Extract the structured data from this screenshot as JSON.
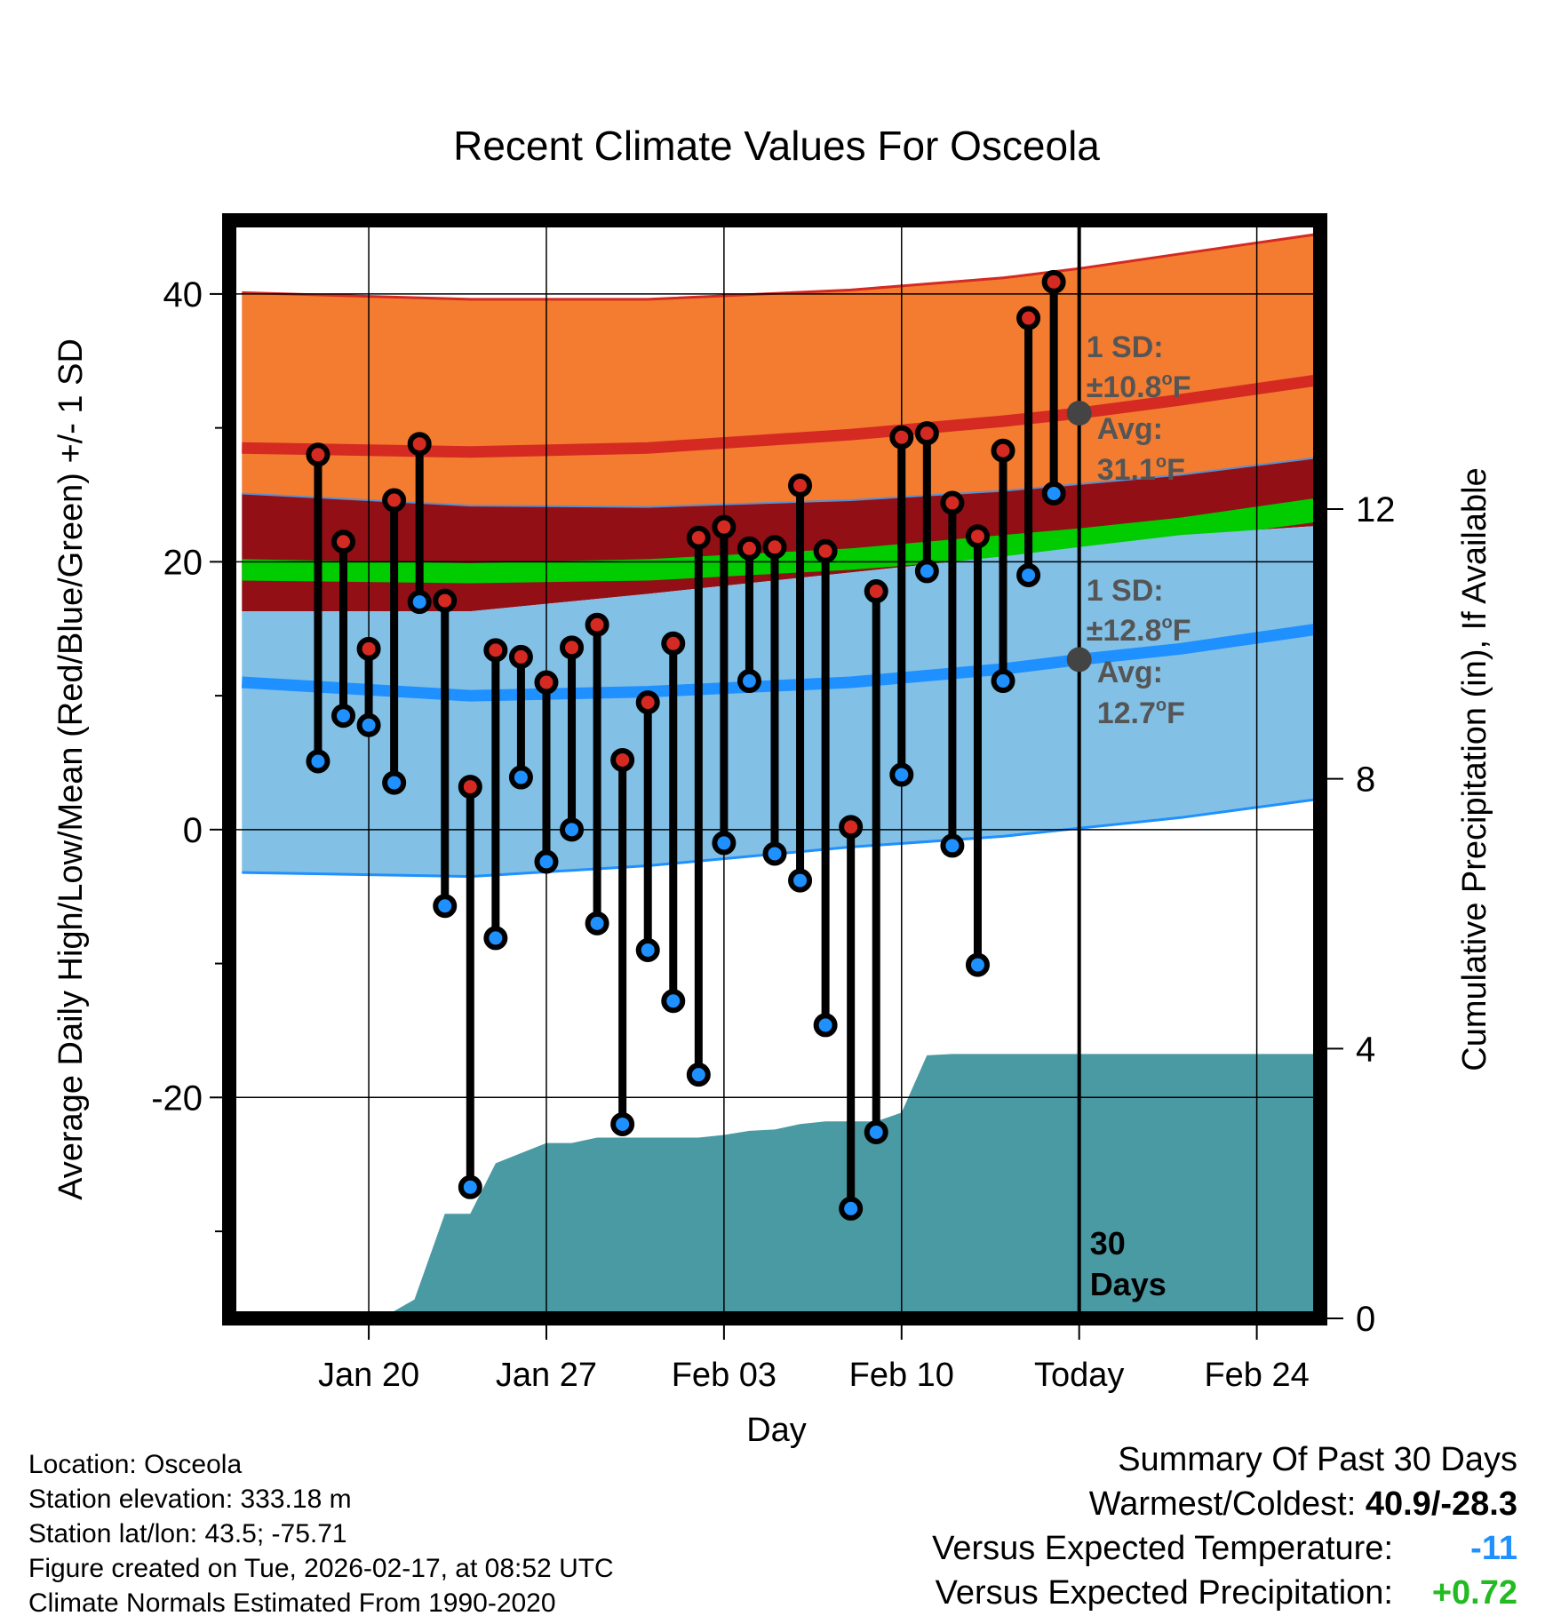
{
  "chart_data": {
    "type": "line",
    "title": "Recent Climate Values For Osceola",
    "xlabel": "Day",
    "ylabel": "Average Daily High/Low/Mean (Red/Blue/Green) +/- 1 SD",
    "y2label": "Cumulative Precipitation (in), If Available",
    "ylim": [
      -36.5,
      45.5
    ],
    "y2lim": [
      0,
      16.28
    ],
    "yticks": [
      -20,
      0,
      20,
      40
    ],
    "ytick_labels": [
      "-20",
      "0",
      "20",
      "40"
    ],
    "y2ticks": [
      0,
      4,
      8,
      12
    ],
    "y2tick_labels": [
      "0",
      "4",
      "8",
      "12"
    ],
    "x_range_days": [
      -33.5,
      9.5
    ],
    "xticks": [
      {
        "day": -28,
        "label": "Jan 20"
      },
      {
        "day": -21,
        "label": "Jan 27"
      },
      {
        "day": -14,
        "label": "Feb 03"
      },
      {
        "day": -7,
        "label": "Feb 10"
      },
      {
        "day": 0,
        "label": "Today"
      },
      {
        "day": 7,
        "label": "Feb 24"
      }
    ],
    "today_marker": {
      "day": 0,
      "label_line1": "30",
      "label_line2": "Days"
    },
    "normals": {
      "x": [
        -33,
        -24,
        -17,
        -9,
        -3,
        0,
        4,
        9.5
      ],
      "high_mean": [
        28.5,
        28.2,
        28.5,
        29.5,
        30.5,
        31.1,
        32.1,
        33.6
      ],
      "high_plus": [
        40.1,
        39.6,
        39.6,
        40.3,
        41.2,
        41.9,
        43.0,
        44.5
      ],
      "high_minus": [
        25.1,
        24.2,
        24.1,
        24.6,
        25.3,
        25.8,
        26.5,
        27.8
      ],
      "green_top": [
        20.2,
        19.9,
        20.2,
        21.0,
        22.0,
        22.5,
        23.3,
        24.8
      ],
      "green_bot": [
        18.6,
        18.4,
        18.6,
        19.4,
        20.3,
        20.8,
        21.6,
        23.0
      ],
      "low_mean": [
        11.0,
        10.0,
        10.3,
        11.0,
        12.0,
        12.7,
        13.5,
        15.0
      ],
      "low_plus": [
        16.3,
        16.3,
        17.6,
        19.2,
        20.4,
        21.1,
        22.0,
        22.7
      ],
      "low_minus": [
        -3.2,
        -3.5,
        -2.7,
        -1.3,
        -0.5,
        0.1,
        0.9,
        2.3
      ]
    },
    "sd_labels": {
      "high": {
        "line1": "1 SD:",
        "line2": "±10.8",
        "deg": "o",
        "unit": "F",
        "avg_label": "Avg:",
        "avg_value": "31.1",
        "avg_y": 31.1
      },
      "low": {
        "line1": "1 SD:",
        "line2": "±12.8",
        "deg": "o",
        "unit": "F",
        "avg_label": "Avg:",
        "avg_value": "12.7",
        "avg_y": 12.7
      }
    },
    "series": [
      {
        "name": "Daily High",
        "x": [
          -30,
          -29,
          -28,
          -27,
          -26,
          -25,
          -24,
          -23,
          -22,
          -21,
          -20,
          -19,
          -18,
          -17,
          -16,
          -15,
          -14,
          -13,
          -12,
          -11,
          -10,
          -9,
          -8,
          -7,
          -6,
          -5,
          -4,
          -3,
          -2,
          -1
        ],
        "values": [
          28.0,
          21.5,
          13.5,
          24.6,
          28.8,
          17.1,
          3.2,
          13.4,
          12.9,
          11.0,
          13.6,
          15.3,
          5.2,
          9.5,
          13.9,
          21.8,
          22.6,
          21.0,
          21.1,
          25.7,
          20.8,
          0.2,
          17.8,
          29.3,
          29.6,
          24.4,
          21.9,
          28.3,
          38.2,
          40.9
        ]
      },
      {
        "name": "Daily Low",
        "x": [
          -30,
          -29,
          -28,
          -27,
          -26,
          -25,
          -24,
          -23,
          -22,
          -21,
          -20,
          -19,
          -18,
          -17,
          -16,
          -15,
          -14,
          -13,
          -12,
          -11,
          -10,
          -9,
          -8,
          -7,
          -6,
          -5,
          -4,
          -3,
          -2,
          -1
        ],
        "values": [
          5.1,
          8.5,
          7.8,
          3.5,
          17.0,
          -5.7,
          -26.7,
          -8.1,
          3.9,
          -2.4,
          0.0,
          -7.0,
          -22.0,
          -9.0,
          -12.8,
          -18.3,
          -1.0,
          11.1,
          -1.8,
          -3.8,
          -14.6,
          -28.3,
          -22.6,
          4.1,
          19.3,
          -1.2,
          -10.1,
          11.1,
          19.0,
          25.1
        ]
      }
    ],
    "precipitation": {
      "x": [
        -33.5,
        -27.5,
        -26.2,
        -25,
        -24,
        -23,
        -22,
        -21,
        -20,
        -19,
        -18,
        -17,
        -16,
        -15,
        -14,
        -13,
        -12,
        -11,
        -10,
        -9,
        -8,
        -7,
        -6,
        -5,
        -4,
        -3,
        -2,
        -1,
        0,
        9.5
      ],
      "values": [
        0,
        0,
        0.28,
        1.55,
        1.55,
        2.3,
        2.45,
        2.6,
        2.6,
        2.68,
        2.68,
        2.68,
        2.68,
        2.68,
        2.72,
        2.78,
        2.8,
        2.88,
        2.92,
        2.92,
        2.92,
        3.05,
        3.9,
        3.92,
        3.92,
        3.92,
        3.92,
        3.92,
        3.92,
        3.92
      ]
    }
  },
  "footer": {
    "location": "Location: Osceola",
    "elevation": "Station elevation: 333.18 m",
    "latlon": "Station lat/lon: 43.5; -75.71",
    "created": "Figure created on Tue, 2026-02-17, at 08:52 UTC",
    "normals": "Climate Normals Estimated From 1990-2020"
  },
  "summary": {
    "heading": "Summary Of Past 30 Days",
    "warmest_label": "Warmest/Coldest: ",
    "warmest_value": "40.9/-28.3",
    "temp_label": "Versus Expected Temperature:",
    "temp_value": "-11",
    "precip_label": "Versus Expected Precipitation:",
    "precip_value": "+0.72"
  },
  "colors": {
    "high_band": "#f37c30",
    "high_line": "#d42a22",
    "dark_band": "#930f16",
    "green_band": "#00cc00",
    "low_band": "#82c0e6",
    "low_line": "#1e90ff",
    "precip_fill": "#4a9aa3",
    "high_dot": "#d42a22",
    "low_dot": "#1e90ff",
    "avg_dot": "#444444",
    "sd_text": "#555555",
    "temp_delta": "#1e90ff",
    "precip_delta": "#22bb22"
  }
}
